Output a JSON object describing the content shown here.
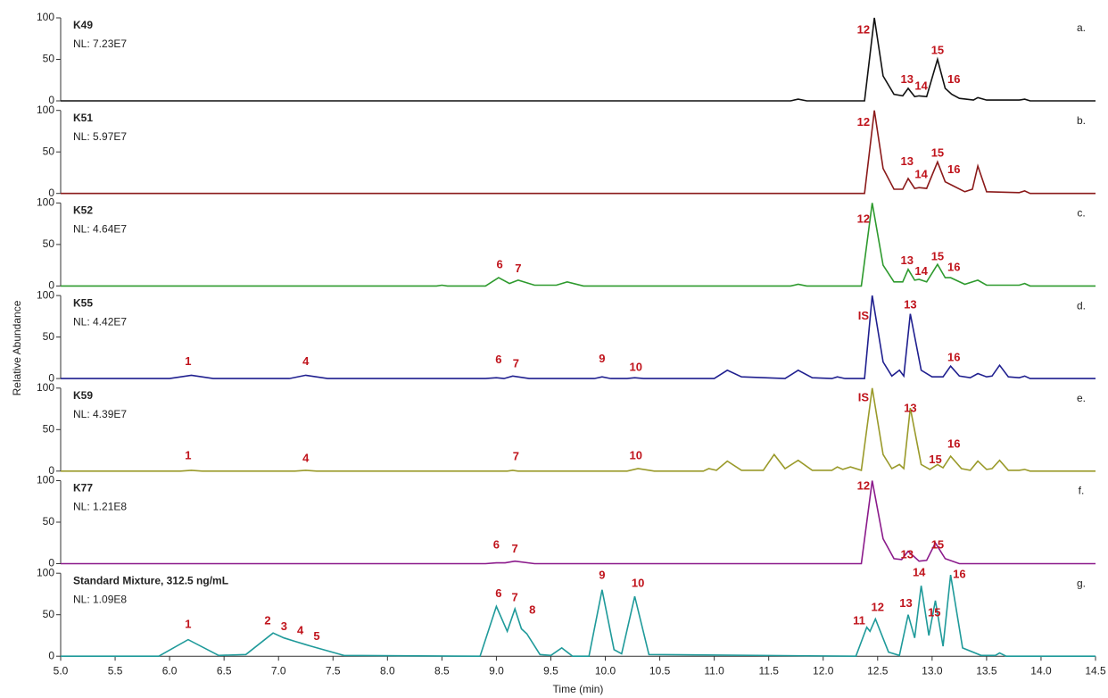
{
  "chart_data": [
    {
      "type": "line",
      "panel": "a.",
      "subtitle": "NL: 7.23E7",
      "xlim": [
        5,
        14.5
      ],
      "ylim": [
        0,
        100
      ],
      "yticks": [
        0,
        50,
        100
      ],
      "x": [
        5.0,
        11.7,
        11.77,
        11.85,
        12.38,
        12.47,
        12.55,
        12.65,
        12.73,
        12.78,
        12.84,
        12.88,
        12.95,
        13.05,
        13.12,
        13.18,
        13.25,
        13.38,
        13.42,
        13.5,
        13.8,
        13.85,
        13.9,
        14.5
      ],
      "series": [
        {
          "name": "K49",
          "color": "#111111",
          "values": [
            0,
            0,
            2,
            0,
            0,
            100,
            30,
            8,
            6,
            15,
            5,
            6,
            5,
            50,
            15,
            8,
            3,
            1,
            4,
            1,
            1,
            2,
            0,
            0
          ]
        }
      ],
      "annotations": [
        {
          "text": "12",
          "x": 12.37,
          "y": 85
        },
        {
          "text": "13",
          "x": 12.77,
          "y": 25
        },
        {
          "text": "14",
          "x": 12.9,
          "y": 17
        },
        {
          "text": "15",
          "x": 13.05,
          "y": 60
        },
        {
          "text": "16",
          "x": 13.2,
          "y": 25
        }
      ]
    },
    {
      "type": "line",
      "panel": "b.",
      "subtitle": "NL: 5.97E7",
      "xlim": [
        5,
        14.5
      ],
      "ylim": [
        0,
        100
      ],
      "yticks": [
        0,
        50,
        100
      ],
      "x": [
        5.0,
        12.38,
        12.47,
        12.55,
        12.65,
        12.73,
        12.78,
        12.84,
        12.88,
        12.95,
        13.05,
        13.12,
        13.18,
        13.3,
        13.37,
        13.42,
        13.5,
        13.8,
        13.85,
        13.9,
        14.5
      ],
      "series": [
        {
          "name": "K51",
          "color": "#8b1a1a",
          "values": [
            0,
            0,
            100,
            30,
            5,
            5,
            18,
            6,
            7,
            6,
            38,
            14,
            10,
            2,
            5,
            33,
            2,
            1,
            3,
            0,
            0
          ]
        }
      ],
      "annotations": [
        {
          "text": "12",
          "x": 12.37,
          "y": 85
        },
        {
          "text": "13",
          "x": 12.77,
          "y": 38
        },
        {
          "text": "14",
          "x": 12.9,
          "y": 22
        },
        {
          "text": "15",
          "x": 13.05,
          "y": 48
        },
        {
          "text": "16",
          "x": 13.2,
          "y": 28
        }
      ]
    },
    {
      "type": "line",
      "panel": "c.",
      "subtitle": "NL: 4.64E7",
      "xlim": [
        5,
        14.5
      ],
      "ylim": [
        0,
        100
      ],
      "yticks": [
        0,
        50,
        100
      ],
      "x": [
        5.0,
        8.45,
        8.5,
        8.55,
        8.9,
        9.02,
        9.12,
        9.2,
        9.35,
        9.55,
        9.65,
        9.8,
        11.7,
        11.77,
        11.85,
        12.35,
        12.45,
        12.55,
        12.65,
        12.73,
        12.78,
        12.84,
        12.88,
        12.95,
        13.05,
        13.12,
        13.17,
        13.3,
        13.42,
        13.5,
        13.8,
        13.85,
        13.9,
        14.5
      ],
      "series": [
        {
          "name": "K52",
          "color": "#2e9a2e",
          "values": [
            0,
            0,
            1,
            0,
            0,
            10,
            3,
            7,
            1,
            1,
            5,
            0,
            0,
            2,
            0,
            0,
            100,
            25,
            5,
            5,
            20,
            7,
            8,
            5,
            26,
            10,
            10,
            2,
            7,
            1,
            1,
            3,
            0,
            0
          ]
        }
      ],
      "annotations": [
        {
          "text": "6",
          "x": 9.03,
          "y": 25
        },
        {
          "text": "7",
          "x": 9.2,
          "y": 20
        },
        {
          "text": "12",
          "x": 12.37,
          "y": 80
        },
        {
          "text": "13",
          "x": 12.77,
          "y": 30
        },
        {
          "text": "14",
          "x": 12.9,
          "y": 17
        },
        {
          "text": "15",
          "x": 13.05,
          "y": 35
        },
        {
          "text": "16",
          "x": 13.2,
          "y": 22
        }
      ]
    },
    {
      "type": "line",
      "panel": "d.",
      "subtitle": "NL: 4.42E7",
      "xlim": [
        5,
        14.5
      ],
      "ylim": [
        0,
        100
      ],
      "yticks": [
        0,
        50,
        100
      ],
      "x": [
        5.0,
        6.0,
        6.2,
        6.4,
        7.1,
        7.25,
        7.45,
        8.9,
        9.0,
        9.07,
        9.15,
        9.3,
        9.9,
        9.97,
        10.05,
        10.2,
        10.27,
        10.35,
        11.0,
        11.12,
        11.25,
        11.65,
        11.77,
        11.9,
        12.08,
        12.13,
        12.2,
        12.38,
        12.45,
        12.55,
        12.63,
        12.7,
        12.74,
        12.8,
        12.9,
        13.0,
        13.1,
        13.17,
        13.25,
        13.35,
        13.42,
        13.5,
        13.55,
        13.62,
        13.7,
        13.8,
        13.85,
        13.9,
        14.5
      ],
      "series": [
        {
          "name": "K55",
          "color": "#1f1f8f",
          "values": [
            0,
            0,
            4,
            0,
            0,
            4,
            0,
            0,
            1,
            0,
            3,
            0,
            0,
            2,
            0,
            0,
            1,
            0,
            0,
            10,
            2,
            0,
            10,
            1,
            0,
            2,
            0,
            0,
            100,
            20,
            3,
            10,
            3,
            78,
            10,
            2,
            2,
            15,
            3,
            1,
            6,
            2,
            3,
            16,
            2,
            1,
            3,
            0,
            0
          ]
        }
      ],
      "annotations": [
        {
          "text": "1",
          "x": 6.17,
          "y": 20
        },
        {
          "text": "4",
          "x": 7.25,
          "y": 20
        },
        {
          "text": "6",
          "x": 9.02,
          "y": 22
        },
        {
          "text": "7",
          "x": 9.18,
          "y": 17
        },
        {
          "text": "9",
          "x": 9.97,
          "y": 23
        },
        {
          "text": "10",
          "x": 10.28,
          "y": 13
        },
        {
          "text": "IS",
          "x": 12.37,
          "y": 75
        },
        {
          "text": "13",
          "x": 12.8,
          "y": 88
        },
        {
          "text": "16",
          "x": 13.2,
          "y": 25
        }
      ]
    },
    {
      "type": "line",
      "panel": "e.",
      "subtitle": "NL: 4.39E7",
      "xlim": [
        5,
        14.5
      ],
      "ylim": [
        0,
        100
      ],
      "yticks": [
        0,
        50,
        100
      ],
      "x": [
        5.0,
        6.1,
        6.2,
        6.3,
        7.15,
        7.25,
        7.35,
        9.1,
        9.15,
        9.2,
        10.2,
        10.3,
        10.45,
        10.9,
        10.95,
        11.02,
        11.12,
        11.25,
        11.45,
        11.55,
        11.65,
        11.77,
        11.9,
        12.08,
        12.13,
        12.18,
        12.25,
        12.35,
        12.45,
        12.55,
        12.63,
        12.7,
        12.74,
        12.8,
        12.9,
        12.98,
        13.05,
        13.1,
        13.17,
        13.27,
        13.35,
        13.42,
        13.5,
        13.55,
        13.62,
        13.7,
        13.8,
        13.85,
        13.9,
        14.5
      ],
      "series": [
        {
          "name": "K59",
          "color": "#9a9a2a",
          "values": [
            0,
            0,
            1,
            0,
            0,
            1,
            0,
            0,
            1,
            0,
            0,
            3,
            0,
            0,
            3,
            1,
            12,
            1,
            1,
            20,
            3,
            13,
            1,
            1,
            5,
            2,
            5,
            1,
            100,
            20,
            3,
            8,
            3,
            76,
            8,
            2,
            8,
            4,
            18,
            3,
            1,
            12,
            2,
            3,
            13,
            1,
            1,
            2,
            0,
            0
          ]
        }
      ],
      "annotations": [
        {
          "text": "1",
          "x": 6.17,
          "y": 18
        },
        {
          "text": "4",
          "x": 7.25,
          "y": 15
        },
        {
          "text": "7",
          "x": 9.18,
          "y": 17
        },
        {
          "text": "10",
          "x": 10.28,
          "y": 18
        },
        {
          "text": "IS",
          "x": 12.37,
          "y": 88
        },
        {
          "text": "13",
          "x": 12.8,
          "y": 75
        },
        {
          "text": "15",
          "x": 13.03,
          "y": 13
        },
        {
          "text": "16",
          "x": 13.2,
          "y": 32
        }
      ]
    },
    {
      "type": "line",
      "panel": "f.",
      "subtitle": "NL: 1.21E8",
      "xlim": [
        5,
        14.5
      ],
      "ylim": [
        0,
        100
      ],
      "yticks": [
        0,
        50,
        100
      ],
      "x": [
        5.0,
        8.9,
        9.0,
        9.08,
        9.17,
        9.35,
        12.35,
        12.45,
        12.55,
        12.65,
        12.72,
        12.78,
        12.88,
        12.95,
        13.03,
        13.12,
        13.25,
        14.5
      ],
      "series": [
        {
          "name": "K77",
          "color": "#8b1a8b",
          "values": [
            0,
            0,
            1,
            1,
            3,
            0,
            0,
            100,
            30,
            6,
            5,
            15,
            3,
            4,
            25,
            6,
            0,
            0
          ]
        }
      ],
      "annotations": [
        {
          "text": "6",
          "x": 9.0,
          "y": 22
        },
        {
          "text": "7",
          "x": 9.17,
          "y": 17
        },
        {
          "text": "12",
          "x": 12.37,
          "y": 93
        },
        {
          "text": "13",
          "x": 12.77,
          "y": 10
        },
        {
          "text": "15",
          "x": 13.05,
          "y": 22
        }
      ]
    },
    {
      "type": "line",
      "panel": "g.",
      "subtitle": "NL: 1.09E8",
      "xlim": [
        5,
        14.5
      ],
      "ylim": [
        0,
        100
      ],
      "yticks": [
        0,
        50,
        100
      ],
      "xlabel": "Time (min)",
      "ylabel": "Relative Abundance",
      "xticks": [
        {
          "value": 5,
          "label": "5.0"
        },
        5.5,
        {
          "value": 6,
          "label": "6.0"
        },
        6.5,
        {
          "value": 7,
          "label": "7.0"
        },
        7.5,
        {
          "value": 8,
          "label": "8.0"
        },
        8.5,
        {
          "value": 9,
          "label": "9.0"
        },
        9.5,
        {
          "value": 10,
          "label": "10.0"
        },
        10.5,
        {
          "value": 11,
          "label": "11.0"
        },
        11.5,
        {
          "value": 12,
          "label": "12.0"
        },
        12.5,
        {
          "value": 13,
          "label": "13.0"
        },
        13.5,
        {
          "value": 14,
          "label": "14.0"
        },
        14.5
      ],
      "x": [
        5.0,
        5.9,
        6.17,
        6.45,
        6.7,
        6.95,
        7.05,
        7.15,
        7.25,
        7.3,
        7.6,
        8.85,
        9.0,
        9.1,
        9.17,
        9.23,
        9.28,
        9.4,
        9.5,
        9.6,
        9.7,
        9.85,
        9.97,
        10.08,
        10.15,
        10.27,
        10.4,
        12.3,
        12.4,
        12.43,
        12.48,
        12.6,
        12.7,
        12.78,
        12.84,
        12.9,
        12.97,
        13.03,
        13.1,
        13.17,
        13.28,
        13.45,
        13.58,
        13.62,
        13.68,
        14.5
      ],
      "series": [
        {
          "name": "Standard Mixture, 312.5 ng/mL",
          "color": "#1f9a9a",
          "values": [
            0,
            0,
            20,
            1,
            2,
            28,
            22,
            18,
            14,
            12,
            1,
            0,
            60,
            30,
            57,
            33,
            27,
            2,
            1,
            10,
            0,
            0,
            80,
            8,
            3,
            72,
            2,
            0,
            35,
            30,
            45,
            5,
            1,
            50,
            22,
            85,
            25,
            67,
            12,
            98,
            10,
            1,
            1,
            4,
            0,
            0
          ]
        }
      ],
      "annotations": [
        {
          "text": "1",
          "x": 6.17,
          "y": 38
        },
        {
          "text": "2",
          "x": 6.9,
          "y": 42
        },
        {
          "text": "3",
          "x": 7.05,
          "y": 35
        },
        {
          "text": "4",
          "x": 7.2,
          "y": 30
        },
        {
          "text": "5",
          "x": 7.35,
          "y": 23
        },
        {
          "text": "6",
          "x": 9.02,
          "y": 75
        },
        {
          "text": "7",
          "x": 9.17,
          "y": 70
        },
        {
          "text": "8",
          "x": 9.33,
          "y": 55
        },
        {
          "text": "9",
          "x": 9.97,
          "y": 97
        },
        {
          "text": "10",
          "x": 10.3,
          "y": 87
        },
        {
          "text": "11",
          "x": 12.33,
          "y": 42
        },
        {
          "text": "12",
          "x": 12.5,
          "y": 58
        },
        {
          "text": "13",
          "x": 12.76,
          "y": 63
        },
        {
          "text": "14",
          "x": 12.88,
          "y": 100
        },
        {
          "text": "15",
          "x": 13.02,
          "y": 52
        },
        {
          "text": "16",
          "x": 13.25,
          "y": 98
        }
      ]
    }
  ]
}
